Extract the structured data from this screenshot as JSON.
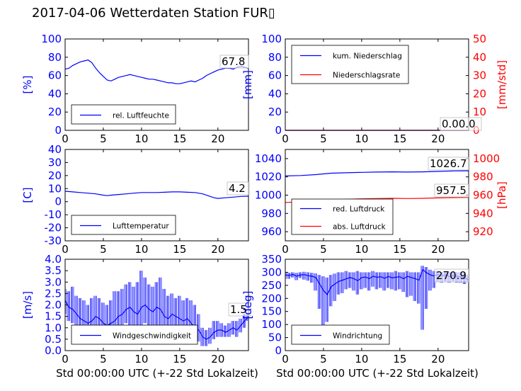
{
  "figure": {
    "title": "2017-04-06 Wetterdaten Station FUR▯",
    "xlabel": "Std 00:00:00 UTC (+-22 Std Lokalzeit)"
  },
  "colors": {
    "primary": "#0000ff",
    "secondary": "#ff0000",
    "axis": "#000000"
  },
  "chart_data": [
    {
      "id": "humidity",
      "type": "line",
      "xlim": [
        0,
        24
      ],
      "xticks": [
        0,
        5,
        10,
        15,
        20
      ],
      "ylim": [
        0,
        100
      ],
      "yticks": [
        0,
        20,
        40,
        60,
        80,
        100
      ],
      "ylabel": "[%]",
      "last_value": "67.8",
      "legend_loc": "lower-left",
      "series": [
        {
          "name": "rel. Luftfeuchte",
          "color": "#0000ff",
          "x": [
            0,
            0.5,
            1,
            1.5,
            2,
            2.5,
            3,
            3.5,
            4,
            4.5,
            5,
            5.5,
            6,
            6.5,
            7,
            7.5,
            8,
            8.5,
            9,
            9.5,
            10,
            10.5,
            11,
            11.5,
            12,
            12.5,
            13,
            13.5,
            14,
            14.5,
            15,
            15.5,
            16,
            16.5,
            17,
            17.5,
            18,
            18.5,
            19,
            19.5,
            20,
            20.5,
            21,
            21.5,
            22,
            22.5,
            23,
            23.5,
            24
          ],
          "y": [
            67,
            68,
            71,
            73,
            75,
            76,
            77,
            74,
            68,
            63,
            59,
            55,
            54,
            56,
            58,
            59,
            60,
            61,
            60,
            59,
            58,
            57,
            56,
            56,
            55,
            54,
            53,
            52,
            52,
            51,
            51,
            52,
            53,
            54,
            53,
            55,
            57,
            60,
            62,
            64,
            66,
            67,
            68,
            68,
            67,
            69,
            70,
            69,
            67.8
          ]
        }
      ]
    },
    {
      "id": "precipitation",
      "type": "line",
      "xlim": [
        0,
        24
      ],
      "xticks": [
        0,
        5,
        10,
        15,
        20
      ],
      "ylim": [
        0,
        100
      ],
      "yticks": [
        0,
        20,
        40,
        60,
        80,
        100
      ],
      "ylabel": "[mm]",
      "y2lim": [
        0,
        50
      ],
      "y2ticks": [
        0,
        10,
        20,
        30,
        40,
        50
      ],
      "y2label": "[mm/std]",
      "last_value": "0.00.0",
      "legend_loc": "upper-left",
      "series": [
        {
          "name": "kum. Niederschlag",
          "color": "#0000ff",
          "axis": "left",
          "x": [
            0,
            24
          ],
          "y": [
            0,
            0
          ]
        },
        {
          "name": "Niederschlagsrate",
          "color": "#ff0000",
          "axis": "right",
          "x": [
            0,
            24
          ],
          "y": [
            0,
            0
          ]
        }
      ]
    },
    {
      "id": "temperature",
      "type": "line",
      "xlim": [
        0,
        24
      ],
      "xticks": [
        0,
        5,
        10,
        15,
        20
      ],
      "ylim": [
        -30,
        40
      ],
      "yticks": [
        -30,
        -20,
        -10,
        0,
        10,
        20,
        30,
        40
      ],
      "ylabel": "[C]",
      "last_value": "4.2",
      "legend_loc": "lower-left",
      "series": [
        {
          "name": "Lufttemperatur",
          "color": "#0000ff",
          "x": [
            0,
            1,
            2,
            3,
            4,
            5,
            5.5,
            6,
            7,
            8,
            9,
            10,
            11,
            12,
            13,
            14,
            15,
            16,
            17,
            18,
            19,
            19.5,
            20,
            21,
            22,
            23,
            24
          ],
          "y": [
            8,
            7.5,
            7,
            6.5,
            6,
            5,
            4.6,
            5,
            5.5,
            6,
            6.5,
            7,
            7,
            7,
            7.2,
            7.5,
            7.5,
            7.2,
            7,
            6,
            4,
            3,
            2.5,
            3,
            3.5,
            4,
            4.2
          ]
        }
      ]
    },
    {
      "id": "pressure",
      "type": "line",
      "xlim": [
        0,
        24
      ],
      "xticks": [
        0,
        5,
        10,
        15,
        20
      ],
      "ylim": [
        950,
        1050
      ],
      "yticks": [
        960,
        980,
        1000,
        1020,
        1040
      ],
      "ylabel": "",
      "y2lim": [
        910,
        1010
      ],
      "y2ticks": [
        920,
        940,
        960,
        980,
        1000
      ],
      "y2label": "[hPa]",
      "last_value": "1026.7",
      "last_value2": "957.5",
      "legend_loc": "lower-left",
      "series": [
        {
          "name": "red. Luftdruck",
          "color": "#0000ff",
          "axis": "left",
          "x": [
            0,
            2,
            4,
            6,
            8,
            10,
            12,
            14,
            16,
            18,
            20,
            22,
            24
          ],
          "y": [
            1021,
            1021.5,
            1022.5,
            1024,
            1024.5,
            1025,
            1025.3,
            1025.5,
            1025.3,
            1025.5,
            1026,
            1026.5,
            1026.7
          ]
        },
        {
          "name": "abs. Luftdruck",
          "color": "#ff0000",
          "axis": "right",
          "x": [
            0,
            2,
            4,
            6,
            8,
            10,
            12,
            14,
            16,
            18,
            20,
            22,
            24
          ],
          "y": [
            952,
            952.5,
            953.5,
            955,
            955.5,
            956,
            956.3,
            956.5,
            956.3,
            956.5,
            957,
            957.3,
            957.5
          ]
        }
      ]
    },
    {
      "id": "windspeed",
      "type": "line",
      "xlim": [
        0,
        24
      ],
      "xticks": [
        0,
        5,
        10,
        15,
        20
      ],
      "ylim": [
        0,
        4
      ],
      "yticks": [
        0.0,
        0.5,
        1.0,
        1.5,
        2.0,
        2.5,
        3.0,
        3.5,
        4.0
      ],
      "ylabel": "[m/s]",
      "last_value": "1.5",
      "legend_loc": "lower-left",
      "series": [
        {
          "name": "Windgeschwindigkeit",
          "color": "#0000ff",
          "x": [
            0,
            0.5,
            1,
            1.5,
            2,
            2.5,
            3,
            3.5,
            4,
            4.5,
            5,
            5.5,
            6,
            6.5,
            7,
            7.5,
            8,
            8.5,
            9,
            9.5,
            10,
            10.5,
            11,
            11.5,
            12,
            12.5,
            13,
            13.5,
            14,
            14.5,
            15,
            15.5,
            16,
            16.5,
            17,
            17.5,
            18,
            18.5,
            19,
            19.5,
            20,
            20.5,
            21,
            21.5,
            22,
            22.5,
            23,
            23.5,
            24
          ],
          "y": [
            2.2,
            1.9,
            1.8,
            1.6,
            1.4,
            1.3,
            1.2,
            1.3,
            1.5,
            1.4,
            1.2,
            1.1,
            1.2,
            1.3,
            1.5,
            1.6,
            1.8,
            1.9,
            1.7,
            1.6,
            1.9,
            2.0,
            1.8,
            1.7,
            1.9,
            1.8,
            1.5,
            1.4,
            1.6,
            1.5,
            1.4,
            1.3,
            1.4,
            1.2,
            1.0,
            0.9,
            0.6,
            0.5,
            0.6,
            0.8,
            0.9,
            0.9,
            0.8,
            0.9,
            1.0,
            0.9,
            1.1,
            1.3,
            1.5
          ],
          "y_max": [
            2.7,
            2.6,
            2.8,
            2.4,
            2.3,
            2.2,
            2.0,
            2.3,
            2.4,
            2.3,
            2.1,
            2.0,
            2.2,
            2.6,
            2.6,
            2.7,
            2.9,
            3.0,
            2.8,
            3.0,
            3.5,
            3.2,
            2.9,
            2.8,
            3.0,
            3.2,
            2.7,
            2.4,
            2.5,
            2.3,
            2.4,
            2.2,
            2.3,
            2.2,
            2.0,
            1.6,
            1.0,
            0.9,
            1.0,
            1.3,
            1.3,
            1.2,
            1.1,
            1.2,
            1.3,
            1.3,
            1.4,
            1.6,
            1.6
          ],
          "y_min": [
            1.6,
            1.3,
            1.2,
            1.0,
            0.9,
            0.8,
            0.6,
            0.7,
            0.9,
            0.8,
            0.6,
            0.5,
            0.6,
            0.7,
            0.9,
            1.0,
            1.2,
            1.1,
            1.0,
            0.9,
            1.1,
            1.2,
            1.0,
            1.0,
            1.1,
            1.0,
            0.8,
            0.7,
            0.9,
            0.8,
            0.7,
            0.7,
            0.7,
            0.6,
            0.5,
            0.4,
            0.2,
            0.2,
            0.3,
            0.5,
            0.6,
            0.6,
            0.6,
            0.6,
            0.7,
            0.6,
            0.8,
            1.0,
            1.3
          ]
        }
      ]
    },
    {
      "id": "winddirection",
      "type": "line",
      "xlim": [
        0,
        24
      ],
      "xticks": [
        0,
        5,
        10,
        15,
        20
      ],
      "ylim": [
        0,
        350
      ],
      "yticks": [
        0,
        50,
        100,
        150,
        200,
        250,
        300,
        350
      ],
      "ylabel": "[deg]",
      "last_value": "270.9",
      "legend_loc": "lower-left",
      "series": [
        {
          "name": "Windrichtung",
          "color": "#0000ff",
          "x": [
            0,
            0.5,
            1,
            1.5,
            2,
            2.5,
            3,
            3.5,
            4,
            4.5,
            5,
            5.5,
            6,
            6.5,
            7,
            7.5,
            8,
            8.5,
            9,
            9.5,
            10,
            10.5,
            11,
            11.5,
            12,
            12.5,
            13,
            13.5,
            14,
            14.5,
            15,
            15.5,
            16,
            16.5,
            17,
            17.5,
            18,
            18.5,
            19,
            19.5,
            20,
            20.5,
            21,
            21.5,
            22,
            22.5,
            23,
            23.5,
            24
          ],
          "y": [
            290,
            288,
            292,
            285,
            290,
            291,
            287,
            285,
            280,
            255,
            230,
            215,
            245,
            255,
            265,
            270,
            275,
            280,
            275,
            268,
            280,
            282,
            276,
            285,
            281,
            283,
            277,
            284,
            279,
            281,
            283,
            275,
            285,
            280,
            276,
            270,
            310,
            298,
            290,
            286,
            292,
            286,
            290,
            283,
            288,
            285,
            282,
            278,
            270.9
          ],
          "y_max": [
            300,
            298,
            300,
            298,
            300,
            302,
            300,
            298,
            296,
            290,
            285,
            280,
            290,
            295,
            300,
            300,
            305,
            300,
            300,
            305,
            300,
            300,
            300,
            305,
            300,
            300,
            300,
            300,
            300,
            305,
            300,
            300,
            305,
            300,
            300,
            300,
            325,
            320,
            310,
            305,
            305,
            300,
            300,
            300,
            300,
            300,
            300,
            300,
            290
          ],
          "y_min": [
            275,
            275,
            280,
            270,
            278,
            272,
            268,
            260,
            230,
            160,
            95,
            110,
            170,
            190,
            215,
            220,
            235,
            240,
            230,
            215,
            235,
            240,
            230,
            245,
            235,
            240,
            230,
            240,
            235,
            230,
            235,
            225,
            205,
            210,
            190,
            180,
            80,
            160,
            230,
            240,
            265,
            260,
            265,
            260,
            265,
            260,
            260,
            255,
            262
          ]
        }
      ]
    }
  ]
}
